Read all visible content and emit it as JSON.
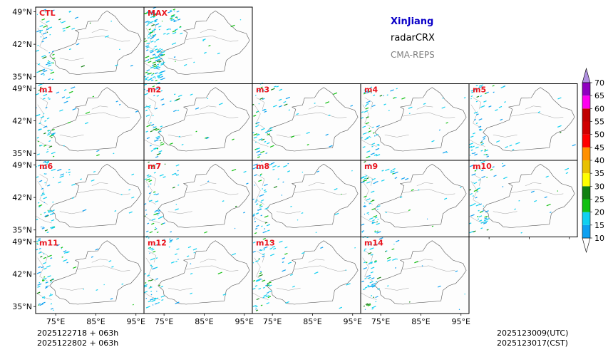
{
  "chart_data": {
    "type": "heatmap",
    "region_title": "XinJiang",
    "variable": "radarCRX",
    "model": "CMA-REPS",
    "title_colors": {
      "region": "#0a00c8",
      "variable": "#000000",
      "model": "#808080"
    },
    "panels": [
      "CTL",
      "MAX",
      "m1",
      "m2",
      "m3",
      "m4",
      "m5",
      "m6",
      "m7",
      "m8",
      "m9",
      "m10",
      "m11",
      "m12",
      "m13",
      "m14"
    ],
    "panel_label_color": "#e8141e",
    "x_ticks": [
      "75°E",
      "85°E",
      "95°E"
    ],
    "x_tick_values": [
      75,
      85,
      95
    ],
    "y_ticks": [
      "49°N",
      "42°N",
      "35°N"
    ],
    "y_tick_values": [
      49,
      42,
      35
    ],
    "lon_range": [
      70,
      97
    ],
    "lat_range": [
      33.5,
      50
    ],
    "colorbar": {
      "levels": [
        "10",
        "15",
        "20",
        "25",
        "30",
        "35",
        "40",
        "45",
        "50",
        "55",
        "60",
        "65",
        "70"
      ],
      "colors": [
        "#0ea0f0",
        "#10d0f0",
        "#10c010",
        "#108010",
        "#ffff00",
        "#e8c000",
        "#ff9000",
        "#ff0000",
        "#d00000",
        "#c00000",
        "#ff00f0",
        "#9000c0",
        "#b090e0"
      ],
      "extend": "both"
    },
    "init_time_utc": "2025122718  +  063h",
    "init_time_cst": "2025122802  +  063h",
    "valid_time_utc": "2025123009(UTC)",
    "valid_time_cst": "2025123017(CST)"
  }
}
